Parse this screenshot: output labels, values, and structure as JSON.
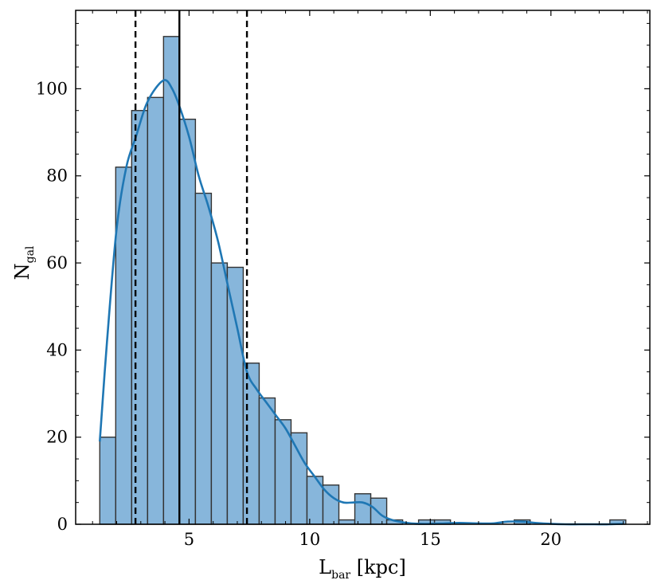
{
  "chart_data": {
    "type": "bar",
    "subtype": "histogram with KDE curve",
    "title": "",
    "xlabel": {
      "main": "L",
      "sub": "bar",
      "unit": " [kpc]"
    },
    "ylabel": {
      "main": "N",
      "sub": "gal"
    },
    "xlim": [
      0.3,
      24.1
    ],
    "ylim": [
      0,
      118
    ],
    "xticks": [
      5,
      10,
      15,
      20
    ],
    "yticks": [
      0,
      20,
      40,
      60,
      80,
      100
    ],
    "grid": false,
    "legend": null,
    "bins": {
      "start": 1.3,
      "width": 0.6607,
      "counts": [
        20,
        82,
        95,
        98,
        112,
        93,
        76,
        60,
        59,
        37,
        29,
        24,
        21,
        11,
        9,
        1,
        7,
        6,
        1,
        0,
        1,
        1,
        0,
        0,
        0,
        0,
        1,
        0,
        0,
        0,
        0,
        0,
        1
      ]
    },
    "kde": {
      "x": [
        1.3,
        1.6,
        2.0,
        2.4,
        2.8,
        3.2,
        3.6,
        4.0,
        4.3,
        4.6,
        5.0,
        5.4,
        5.8,
        6.2,
        6.6,
        7.0,
        7.4,
        7.8,
        8.2,
        8.6,
        9.0,
        9.4,
        9.8,
        10.2,
        10.6,
        11.0,
        11.4,
        11.8,
        12.2,
        12.6,
        13.0,
        13.4,
        13.8,
        14.2,
        14.6,
        15.0,
        15.6,
        16.2,
        17.0,
        17.6,
        18.2,
        18.8,
        19.4,
        20.0,
        20.6,
        21.2,
        21.8,
        22.4,
        23.0
      ],
      "y": [
        19,
        42,
        68,
        82,
        89,
        96,
        100,
        102,
        100,
        96,
        89,
        80,
        73,
        65,
        55,
        45,
        35,
        31,
        28,
        25,
        22,
        18,
        14,
        11,
        8,
        6,
        5,
        5,
        5,
        4,
        2,
        1,
        0.5,
        0.2,
        0.1,
        0.1,
        0.2,
        0.3,
        0.2,
        0.2,
        0.6,
        0.6,
        0.3,
        0.1,
        0,
        0,
        0,
        0,
        0.1
      ]
    },
    "vlines": [
      {
        "x": 2.78,
        "style": "dashed"
      },
      {
        "x": 4.6,
        "style": "solid"
      },
      {
        "x": 7.4,
        "style": "dashed"
      }
    ],
    "colors": {
      "bar_fill": "#87b6db",
      "bar_edge": "#333333",
      "kde_line": "#1f77b4",
      "vline": "#000000"
    }
  }
}
